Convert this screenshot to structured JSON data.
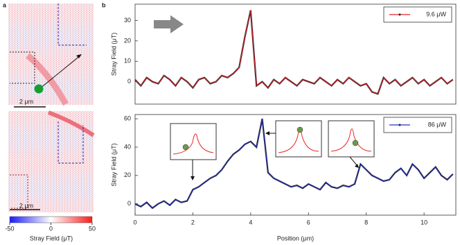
{
  "panels": [
    "a",
    "b"
  ],
  "maps": {
    "scale_bars": [
      "2 μm",
      "2 μm"
    ],
    "colorbar": {
      "label": "Stray Field (μT)",
      "lim": [
        -50,
        50
      ],
      "ticks": [
        -50,
        0,
        50
      ]
    }
  },
  "chart_data": [
    {
      "type": "line",
      "ylabel": "Stray Field (μT)",
      "xlim": [
        0,
        11.1
      ],
      "ylim": [
        -11,
        38
      ],
      "yticks": [
        0,
        10,
        20,
        30
      ],
      "x": [
        0,
        0.2,
        0.4,
        0.6,
        0.8,
        1.0,
        1.2,
        1.4,
        1.6,
        1.8,
        2.0,
        2.2,
        2.4,
        2.6,
        2.8,
        3.0,
        3.2,
        3.4,
        3.6,
        3.8,
        4.0,
        4.2,
        4.4,
        4.6,
        4.8,
        5.0,
        5.2,
        5.4,
        5.6,
        5.8,
        6.0,
        6.2,
        6.4,
        6.6,
        6.8,
        7.0,
        7.2,
        7.4,
        7.6,
        7.8,
        8.0,
        8.2,
        8.4,
        8.6,
        8.8,
        9.0,
        9.2,
        9.4,
        9.6,
        9.8,
        10.0,
        10.2,
        10.4,
        10.6,
        10.8,
        11.0
      ],
      "series": [
        {
          "name": "9.6 μW",
          "color": "#e8202a",
          "values": [
            1,
            -2,
            2,
            0,
            -1,
            3,
            1,
            -2,
            2,
            0,
            -3,
            1,
            2,
            -1,
            0,
            3,
            2,
            4,
            7,
            22,
            35,
            -2,
            0,
            -3,
            1,
            -1,
            2,
            0,
            -2,
            1,
            0,
            -1,
            2,
            0,
            -2,
            1,
            -1,
            2,
            0,
            -2,
            -1,
            -5,
            -6,
            2,
            -1,
            1,
            -2,
            0,
            2,
            -1,
            1,
            -2,
            0,
            2,
            -1,
            1
          ]
        }
      ],
      "legend": "upper right"
    },
    {
      "type": "line",
      "ylabel": "Stray Field (μT)",
      "xlabel": "Position (μm)",
      "xlim": [
        0,
        11.1
      ],
      "ylim": [
        -8,
        63
      ],
      "yticks": [
        0,
        20,
        40,
        60
      ],
      "xticks": [
        0,
        2,
        4,
        6,
        8,
        10
      ],
      "x": [
        0,
        0.2,
        0.4,
        0.6,
        0.8,
        1.0,
        1.2,
        1.4,
        1.6,
        1.8,
        2.0,
        2.2,
        2.4,
        2.6,
        2.8,
        3.0,
        3.2,
        3.4,
        3.6,
        3.8,
        4.0,
        4.2,
        4.4,
        4.6,
        4.8,
        5.0,
        5.2,
        5.4,
        5.6,
        5.8,
        6.0,
        6.2,
        6.4,
        6.6,
        6.8,
        7.0,
        7.2,
        7.4,
        7.6,
        7.8,
        8.0,
        8.2,
        8.4,
        8.6,
        8.8,
        9.0,
        9.2,
        9.4,
        9.6,
        9.8,
        10.0,
        10.2,
        10.4,
        10.6,
        10.8,
        11.0
      ],
      "series": [
        {
          "name": "86 μW",
          "color": "#2530c8",
          "values": [
            0,
            -2,
            1,
            -3,
            0,
            2,
            -1,
            3,
            1,
            2,
            10,
            12,
            15,
            18,
            20,
            24,
            30,
            35,
            38,
            42,
            44,
            40,
            60,
            22,
            18,
            16,
            14,
            12,
            13,
            11,
            14,
            12,
            10,
            15,
            12,
            11,
            13,
            12,
            14,
            28,
            24,
            20,
            18,
            16,
            17,
            22,
            25,
            20,
            28,
            24,
            18,
            22,
            26,
            20,
            17,
            21
          ]
        }
      ],
      "legend": "upper right"
    }
  ]
}
